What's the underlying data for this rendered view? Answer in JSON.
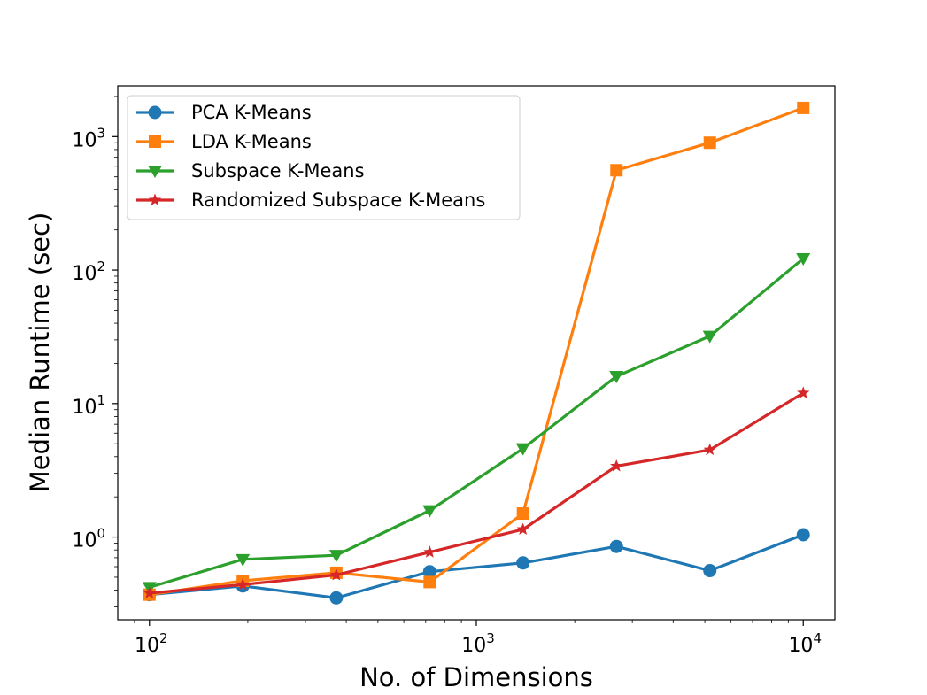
{
  "chart_data": {
    "type": "line",
    "title": "",
    "xlabel": "No. of Dimensions",
    "ylabel": "Median Runtime (sec)",
    "xscale": "log",
    "yscale": "log",
    "xlim": [
      80,
      12500
    ],
    "ylim": [
      0.24,
      2400
    ],
    "xticks": [
      {
        "value": 100,
        "base": "10",
        "exp": "2"
      },
      {
        "value": 1000,
        "base": "10",
        "exp": "3"
      },
      {
        "value": 10000,
        "base": "10",
        "exp": "4"
      }
    ],
    "yticks": [
      {
        "value": 1,
        "base": "10",
        "exp": "0"
      },
      {
        "value": 10,
        "base": "10",
        "exp": "1"
      },
      {
        "value": 100,
        "base": "10",
        "exp": "2"
      },
      {
        "value": 1000,
        "base": "10",
        "exp": "3"
      }
    ],
    "grid": false,
    "legend_position": "top-left",
    "x": [
      100,
      193,
      373,
      720,
      1389,
      2683,
      5179,
      10000
    ],
    "series": [
      {
        "name": "PCA K-Means",
        "color": "#1f77b4",
        "marker": "circle",
        "values": [
          0.37,
          0.43,
          0.35,
          0.55,
          0.64,
          0.85,
          0.56,
          1.04
        ]
      },
      {
        "name": "LDA K-Means",
        "color": "#ff7f0e",
        "marker": "square",
        "values": [
          0.37,
          0.47,
          0.54,
          0.46,
          1.5,
          560,
          900,
          1640
        ]
      },
      {
        "name": "Subspace K-Means",
        "color": "#2ca02c",
        "marker": "triangle-down",
        "values": [
          0.42,
          0.68,
          0.73,
          1.58,
          4.6,
          16,
          32,
          122
        ]
      },
      {
        "name": "Randomized Subspace K-Means",
        "color": "#d62728",
        "marker": "star",
        "values": [
          0.38,
          0.44,
          0.52,
          0.77,
          1.14,
          3.4,
          4.5,
          12
        ]
      }
    ]
  }
}
